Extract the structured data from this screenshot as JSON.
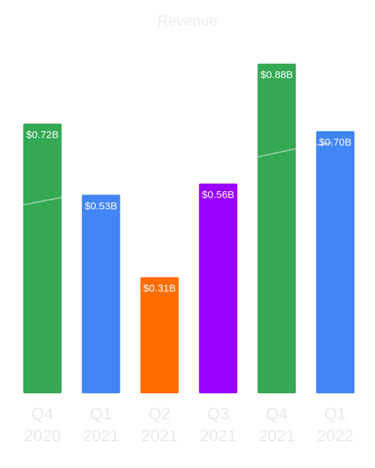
{
  "chart_data": {
    "type": "bar",
    "title": "Revenue",
    "categories": [
      [
        "Q4",
        "2020"
      ],
      [
        "Q1",
        "2021"
      ],
      [
        "Q2",
        "2021"
      ],
      [
        "Q3",
        "2021"
      ],
      [
        "Q4",
        "2021"
      ],
      [
        "Q1",
        "2022"
      ]
    ],
    "values": [
      0.72,
      0.53,
      0.31,
      0.56,
      0.88,
      0.7
    ],
    "data_labels": [
      "$0.72B",
      "$0.53B",
      "$0.31B",
      "$0.56B",
      "$0.88B",
      "$0.70B"
    ],
    "colors": [
      "#34a853",
      "#4285f4",
      "#ff6d00",
      "#9900ff",
      "#34a853",
      "#4285f4"
    ],
    "ylim": [
      0,
      0.9
    ],
    "grid": false,
    "legend": "none"
  }
}
